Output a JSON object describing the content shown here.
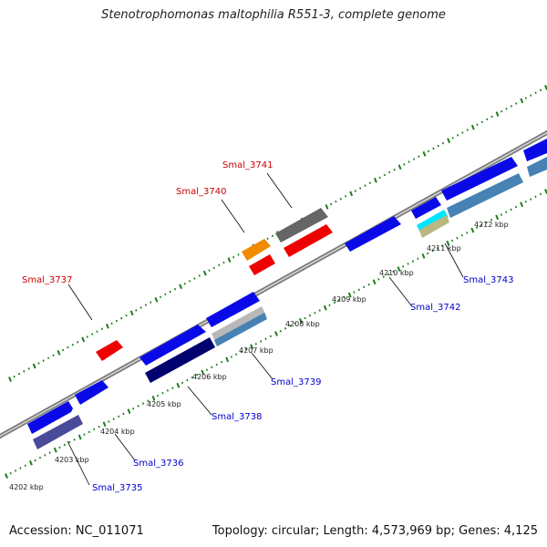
{
  "title": "Stenotrophomonas maltophilia R551-3, complete genome",
  "footer": {
    "accession": "Accession: NC_011071",
    "summary": "Topology: circular; Length: 4,573,969 bp; Genes: 4,125"
  },
  "colors": {
    "backbone": "#8a8a8a",
    "tick": "#1c7d1c",
    "top_label": "#cc0000",
    "bottom_label": "#0000cc",
    "pointer_line": "#000000"
  },
  "ticks": [
    {
      "label": "4202 kbp"
    },
    {
      "label": "4203 kbp"
    },
    {
      "label": "4204 kbp"
    },
    {
      "label": "4205 kbp"
    },
    {
      "label": "4206 kbp"
    },
    {
      "label": "4207 kbp"
    },
    {
      "label": "4208 kbp"
    },
    {
      "label": "4209 kbp"
    },
    {
      "label": "4210 kbp"
    },
    {
      "label": "4211 kbp"
    },
    {
      "label": "4212 kbp"
    }
  ],
  "genes": [
    {
      "name": "Smal_3737",
      "strand": "top",
      "color": "#ee0000"
    },
    {
      "name": "Smal_3740",
      "strand": "top",
      "color": "#f08a00"
    },
    {
      "name": "Smal_3741",
      "strand": "top",
      "color": "#666666"
    },
    {
      "name": "Smal_3735",
      "strand": "bottom",
      "color": "#4a4a9a"
    },
    {
      "name": "Smal_3736",
      "strand": "bottom",
      "color": "#0000ee"
    },
    {
      "name": "Smal_3738",
      "strand": "bottom",
      "color": "#00006e"
    },
    {
      "name": "Smal_3739",
      "strand": "bottom",
      "color": "#4682b4"
    },
    {
      "name": "Smal_3742",
      "strand": "bottom",
      "color": "#0000ee"
    },
    {
      "name": "Smal_3743",
      "strand": "bottom",
      "color": "#4682b4"
    }
  ]
}
